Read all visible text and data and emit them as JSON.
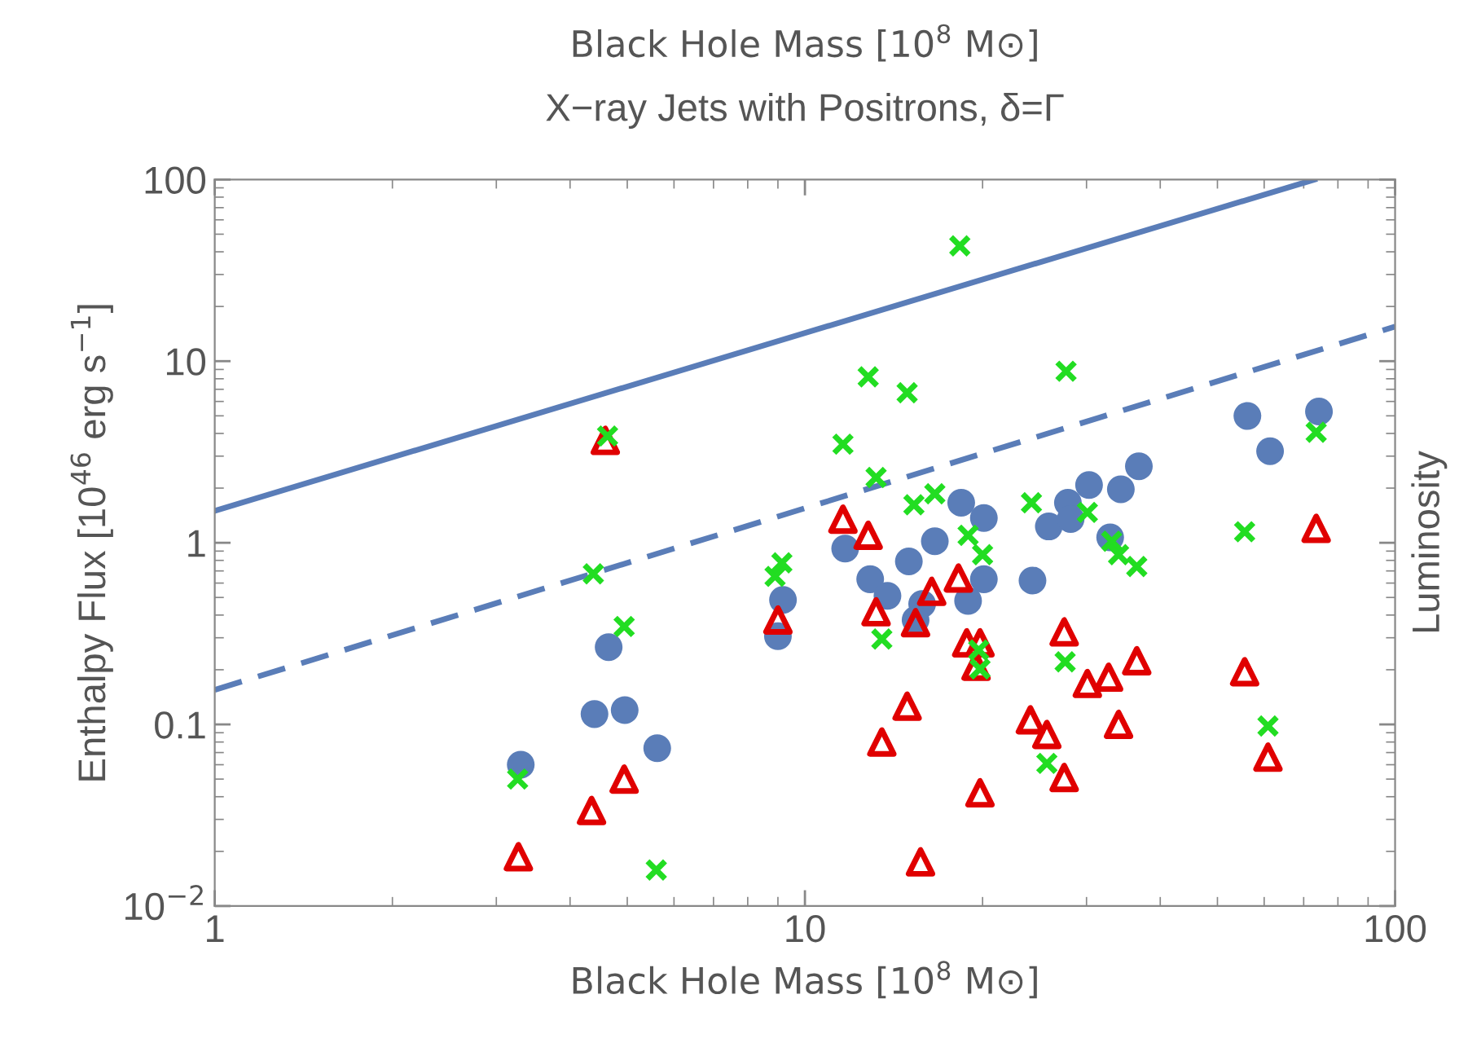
{
  "chart_data": {
    "type": "scatter",
    "title": "X−ray Jets with Positrons, δ=Γ",
    "xlabel": "Black Hole Mass [10$^{8}$ M⊙]",
    "x2label": "Black Hole Mass [10$^{8}$ M⊙]",
    "ylabel": "Enthalpy Flux [10$^{46}$ erg s$^{−1}$]",
    "y2label": "Luminosity",
    "log": "xy",
    "xlim": [
      1,
      100
    ],
    "xticks": [
      1,
      10,
      100
    ],
    "ylim": [
      0.01,
      100
    ],
    "yticks": [
      {
        "value": 0.01,
        "label": "10$^{−2}$"
      },
      {
        "value": 0.1,
        "label": "0.1"
      },
      1,
      10,
      100
    ],
    "grid": false,
    "series": [
      {
        "type": "line",
        "color": "#5a7db8",
        "line_style": "solid",
        "marker": "none",
        "x": [
          1,
          73
        ],
        "values": [
          1.5,
          100
        ]
      },
      {
        "type": "line",
        "color": "#5a7db8",
        "line_style": "dashed",
        "marker": "none",
        "x": [
          1,
          100
        ],
        "values": [
          0.155,
          15.5
        ]
      },
      {
        "color": "#5a7db8",
        "marker": "circle",
        "x": [
          3.3,
          4.65,
          4.4,
          4.95,
          5.62,
          9.18,
          9.0,
          56.2,
          74.3,
          61.4,
          36.8,
          34.3,
          30.3,
          27.9,
          25.9,
          28.2,
          32.9,
          20.1,
          18.4,
          20.1,
          18.9,
          16.6,
          15.0,
          12.9,
          13.8,
          15.8,
          15.4,
          11.7,
          24.3
        ],
        "values": [
          0.06,
          0.266,
          0.114,
          0.12,
          0.074,
          0.485,
          0.306,
          4.99,
          5.28,
          3.19,
          2.64,
          1.97,
          2.08,
          1.66,
          1.23,
          1.35,
          1.07,
          1.37,
          1.66,
          0.63,
          0.479,
          1.02,
          0.79,
          0.63,
          0.51,
          0.46,
          0.376,
          0.93,
          0.62
        ]
      },
      {
        "color": "#e00000",
        "marker": "triangle",
        "x": [
          3.27,
          4.35,
          4.94,
          4.59,
          9.0,
          11.6,
          12.8,
          18.2,
          16.4,
          13.2,
          15.4,
          18.8,
          19.8,
          19.5,
          27.5,
          30.1,
          32.7,
          36.5,
          55.6,
          14.9,
          13.5,
          24.1,
          25.7,
          34.0,
          27.5,
          60.9,
          19.8,
          15.7,
          73.5
        ],
        "values": [
          0.0187,
          0.0336,
          0.05,
          3.66,
          0.376,
          1.35,
          1.1,
          0.64,
          0.54,
          0.417,
          0.363,
          0.281,
          0.281,
          0.209,
          0.323,
          0.168,
          0.182,
          0.224,
          0.195,
          0.126,
          0.08,
          0.106,
          0.088,
          0.1,
          0.051,
          0.066,
          0.042,
          0.0175,
          1.2
        ]
      },
      {
        "color": "#22dd22",
        "marker": "cross",
        "x": [
          3.26,
          4.38,
          4.94,
          5.6,
          4.63,
          8.9,
          9.14,
          11.6,
          13.2,
          15.3,
          16.6,
          18.9,
          20.0,
          24.2,
          30.1,
          33.1,
          34.0,
          36.5,
          13.5,
          19.7,
          19.8,
          27.6,
          55.6,
          73.5,
          60.9,
          25.7,
          18.3,
          12.8,
          14.9,
          27.7
        ],
        "values": [
          0.05,
          0.675,
          0.346,
          0.0158,
          3.87,
          0.653,
          0.775,
          3.49,
          2.29,
          1.62,
          1.86,
          1.1,
          0.86,
          1.66,
          1.47,
          1.02,
          0.86,
          0.74,
          0.295,
          0.257,
          0.202,
          0.221,
          1.15,
          4.06,
          0.098,
          0.061,
          43.1,
          8.2,
          6.7,
          8.8
        ]
      }
    ]
  }
}
